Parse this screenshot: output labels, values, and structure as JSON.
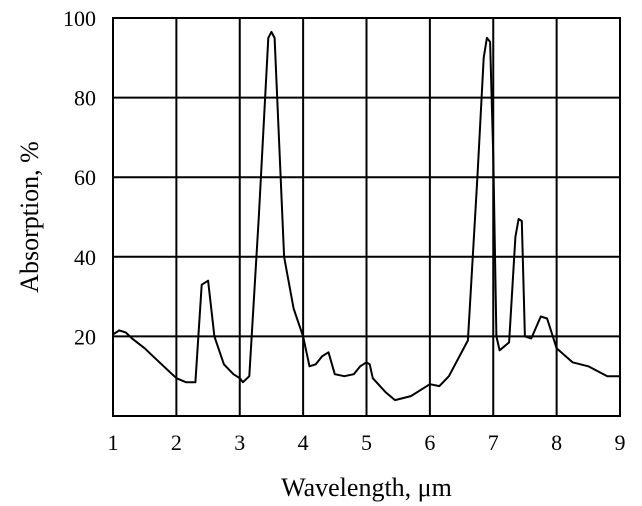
{
  "chart_data": {
    "type": "line",
    "title": "",
    "xlabel": "Wavelength, μm",
    "ylabel": "Absorption, %",
    "xlim": [
      1,
      9
    ],
    "ylim": [
      0,
      100
    ],
    "x_ticks": [
      1,
      2,
      3,
      4,
      5,
      6,
      7,
      8,
      9
    ],
    "x_tick_labels": [
      "1",
      "2",
      "3",
      "4",
      "5",
      "6",
      "7",
      "8",
      "9"
    ],
    "y_ticks": [
      20,
      40,
      60,
      80,
      100
    ],
    "y_tick_labels": [
      "20",
      "40",
      "60",
      "80",
      "100"
    ],
    "grid": true,
    "legend": "none",
    "colors": {
      "line": "#000000",
      "grid": "#000000",
      "background": "#ffffff"
    },
    "series": [
      {
        "x": [
          1.0,
          1.1,
          1.2,
          1.3,
          1.5,
          1.6,
          1.8,
          2.0,
          2.15,
          2.3,
          2.4,
          2.5,
          2.6,
          2.75,
          2.9,
          3.0,
          3.05,
          3.15,
          3.3,
          3.45,
          3.5,
          3.55,
          3.7,
          3.85,
          4.0,
          4.1,
          4.2,
          4.3,
          4.4,
          4.5,
          4.65,
          4.8,
          4.9,
          5.0,
          5.05,
          5.1,
          5.3,
          5.45,
          5.7,
          6.0,
          6.15,
          6.3,
          6.6,
          6.75,
          6.85,
          6.9,
          6.95,
          7.0,
          7.05,
          7.1,
          7.25,
          7.35,
          7.4,
          7.45,
          7.5,
          7.6,
          7.75,
          7.85,
          8.0,
          8.25,
          8.5,
          8.8,
          9.0
        ],
        "y": [
          20.5,
          21.5,
          21.0,
          19.5,
          17.0,
          15.5,
          12.5,
          9.5,
          8.5,
          8.5,
          33.0,
          34.0,
          20.0,
          13.0,
          10.5,
          9.5,
          8.5,
          10.0,
          50.0,
          95.0,
          96.5,
          95.0,
          40.0,
          27.0,
          20.0,
          12.5,
          13.0,
          15.0,
          16.0,
          10.5,
          10.0,
          10.5,
          12.5,
          13.5,
          13.0,
          9.5,
          6.0,
          4.0,
          5.0,
          8.0,
          7.5,
          10.0,
          19.0,
          60.0,
          90.0,
          95.0,
          94.0,
          65.0,
          20.0,
          16.5,
          18.5,
          45.0,
          49.5,
          49.0,
          20.0,
          19.5,
          25.0,
          24.5,
          17.0,
          13.5,
          12.5,
          10.0,
          10.0
        ]
      }
    ]
  }
}
